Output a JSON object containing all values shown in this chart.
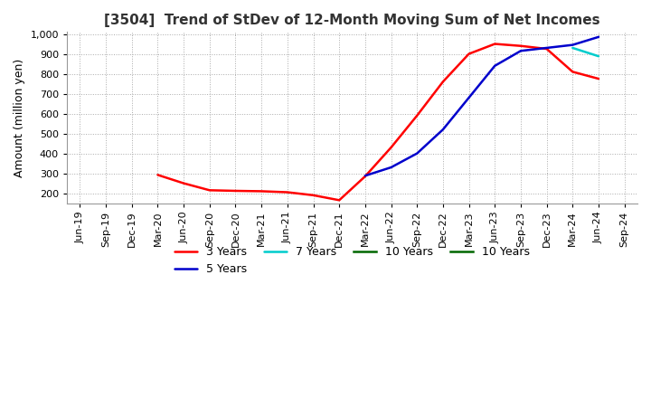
{
  "title": "[3504]  Trend of StDev of 12-Month Moving Sum of Net Incomes",
  "ylabel": "Amount (million yen)",
  "ylim": [
    150,
    1010
  ],
  "yticks": [
    200,
    300,
    400,
    500,
    600,
    700,
    800,
    900,
    1000
  ],
  "background_color": "#ffffff",
  "grid_color": "#aaaaaa",
  "series": {
    "3 Years": {
      "color": "#ff0000",
      "x": [
        0,
        1,
        2,
        3,
        4,
        5,
        6,
        7,
        8,
        9,
        10,
        11,
        12,
        13,
        14,
        15,
        16,
        17,
        18,
        19,
        20
      ],
      "y": [
        null,
        null,
        null,
        292,
        250,
        215,
        212,
        210,
        205,
        190,
        165,
        285,
        430,
        590,
        760,
        900,
        950,
        940,
        925,
        810,
        775
      ]
    },
    "5 Years": {
      "color": "#0000cc",
      "x": [
        0,
        1,
        2,
        3,
        4,
        5,
        6,
        7,
        8,
        9,
        10,
        11,
        12,
        13,
        14,
        15,
        16,
        17,
        18,
        19,
        20
      ],
      "y": [
        null,
        null,
        null,
        null,
        null,
        null,
        null,
        null,
        null,
        null,
        null,
        288,
        330,
        400,
        520,
        680,
        840,
        915,
        930,
        945,
        985
      ]
    },
    "7 Years": {
      "color": "#00cccc",
      "x": [
        0,
        1,
        2,
        3,
        4,
        5,
        6,
        7,
        8,
        9,
        10,
        11,
        12,
        13,
        14,
        15,
        16,
        17,
        18,
        19,
        20
      ],
      "y": [
        null,
        null,
        null,
        null,
        null,
        null,
        null,
        null,
        null,
        null,
        null,
        null,
        null,
        null,
        null,
        null,
        null,
        null,
        null,
        930,
        888
      ]
    },
    "10 Years": {
      "color": "#006600",
      "x": [
        0,
        1,
        2,
        3,
        4,
        5,
        6,
        7,
        8,
        9,
        10,
        11,
        12,
        13,
        14,
        15,
        16,
        17,
        18,
        19,
        20
      ],
      "y": [
        null,
        null,
        null,
        null,
        null,
        null,
        null,
        null,
        null,
        null,
        null,
        null,
        null,
        null,
        null,
        null,
        null,
        null,
        null,
        null,
        null
      ]
    }
  },
  "xtick_labels": [
    "Jun-19",
    "Sep-19",
    "Dec-19",
    "Mar-20",
    "Jun-20",
    "Sep-20",
    "Dec-20",
    "Mar-21",
    "Jun-21",
    "Sep-21",
    "Dec-21",
    "Mar-22",
    "Jun-22",
    "Sep-22",
    "Dec-22",
    "Mar-23",
    "Jun-23",
    "Sep-23",
    "Dec-23",
    "Mar-24",
    "Jun-24",
    "Sep-24"
  ],
  "title_fontsize": 11,
  "axis_fontsize": 9,
  "tick_fontsize": 8,
  "linewidth": 1.8
}
